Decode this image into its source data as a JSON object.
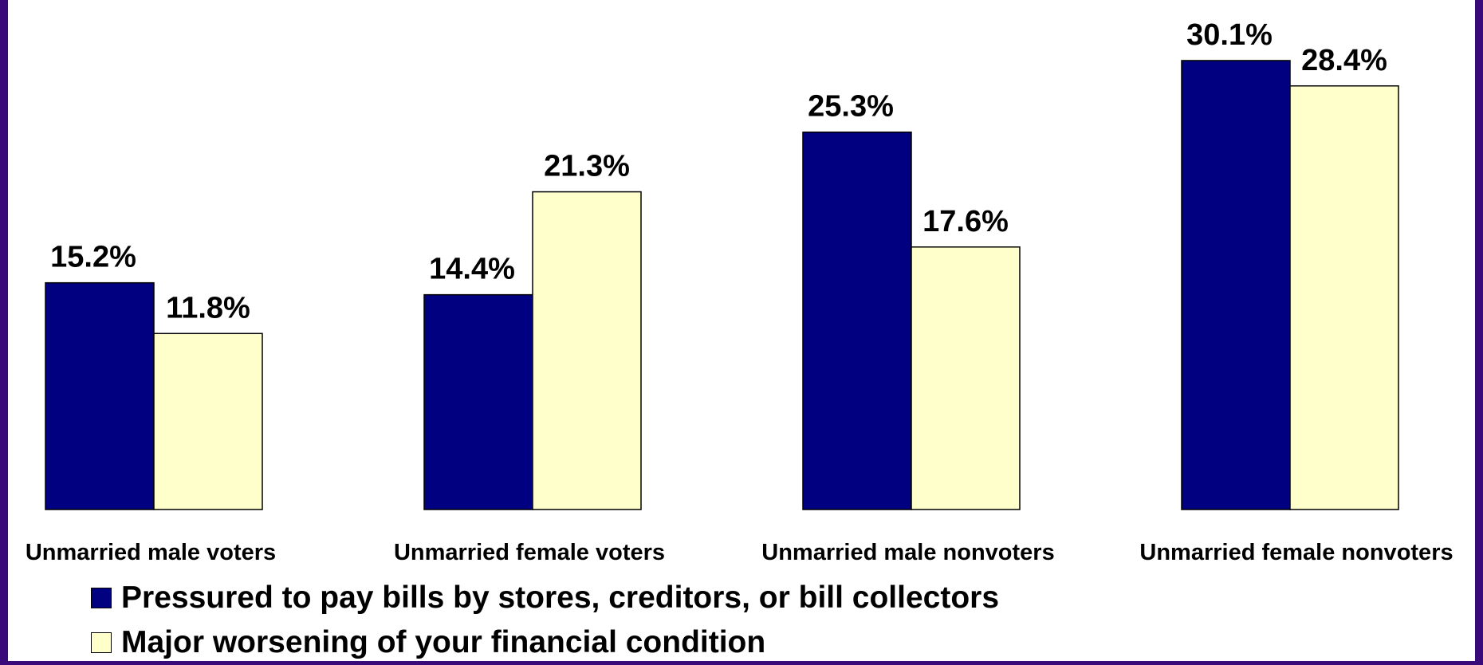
{
  "chart_data": {
    "type": "bar",
    "categories": [
      "Unmarried male voters",
      "Unmarried female voters",
      "Unmarried male nonvoters",
      "Unmarried female nonvoters"
    ],
    "series": [
      {
        "name": "Pressured to pay bills by stores, creditors, or bill collectors",
        "values": [
          15.2,
          14.4,
          25.3,
          30.1
        ],
        "color": "#000080"
      },
      {
        "name": "Major worsening of your financial condition",
        "values": [
          11.8,
          21.3,
          17.6,
          28.4
        ],
        "color": "#ffffcc"
      }
    ],
    "data_labels": [
      [
        "15.2%",
        "14.4%",
        "25.3%",
        "30.1%"
      ],
      [
        "11.8%",
        "21.3%",
        "17.6%",
        "28.4%"
      ]
    ],
    "ylim": [
      0,
      34
    ],
    "grid": false,
    "legend_position": "bottom-left",
    "colors": {
      "background_frame": "#3a0a7a",
      "plot_background": "#ffffff"
    }
  }
}
